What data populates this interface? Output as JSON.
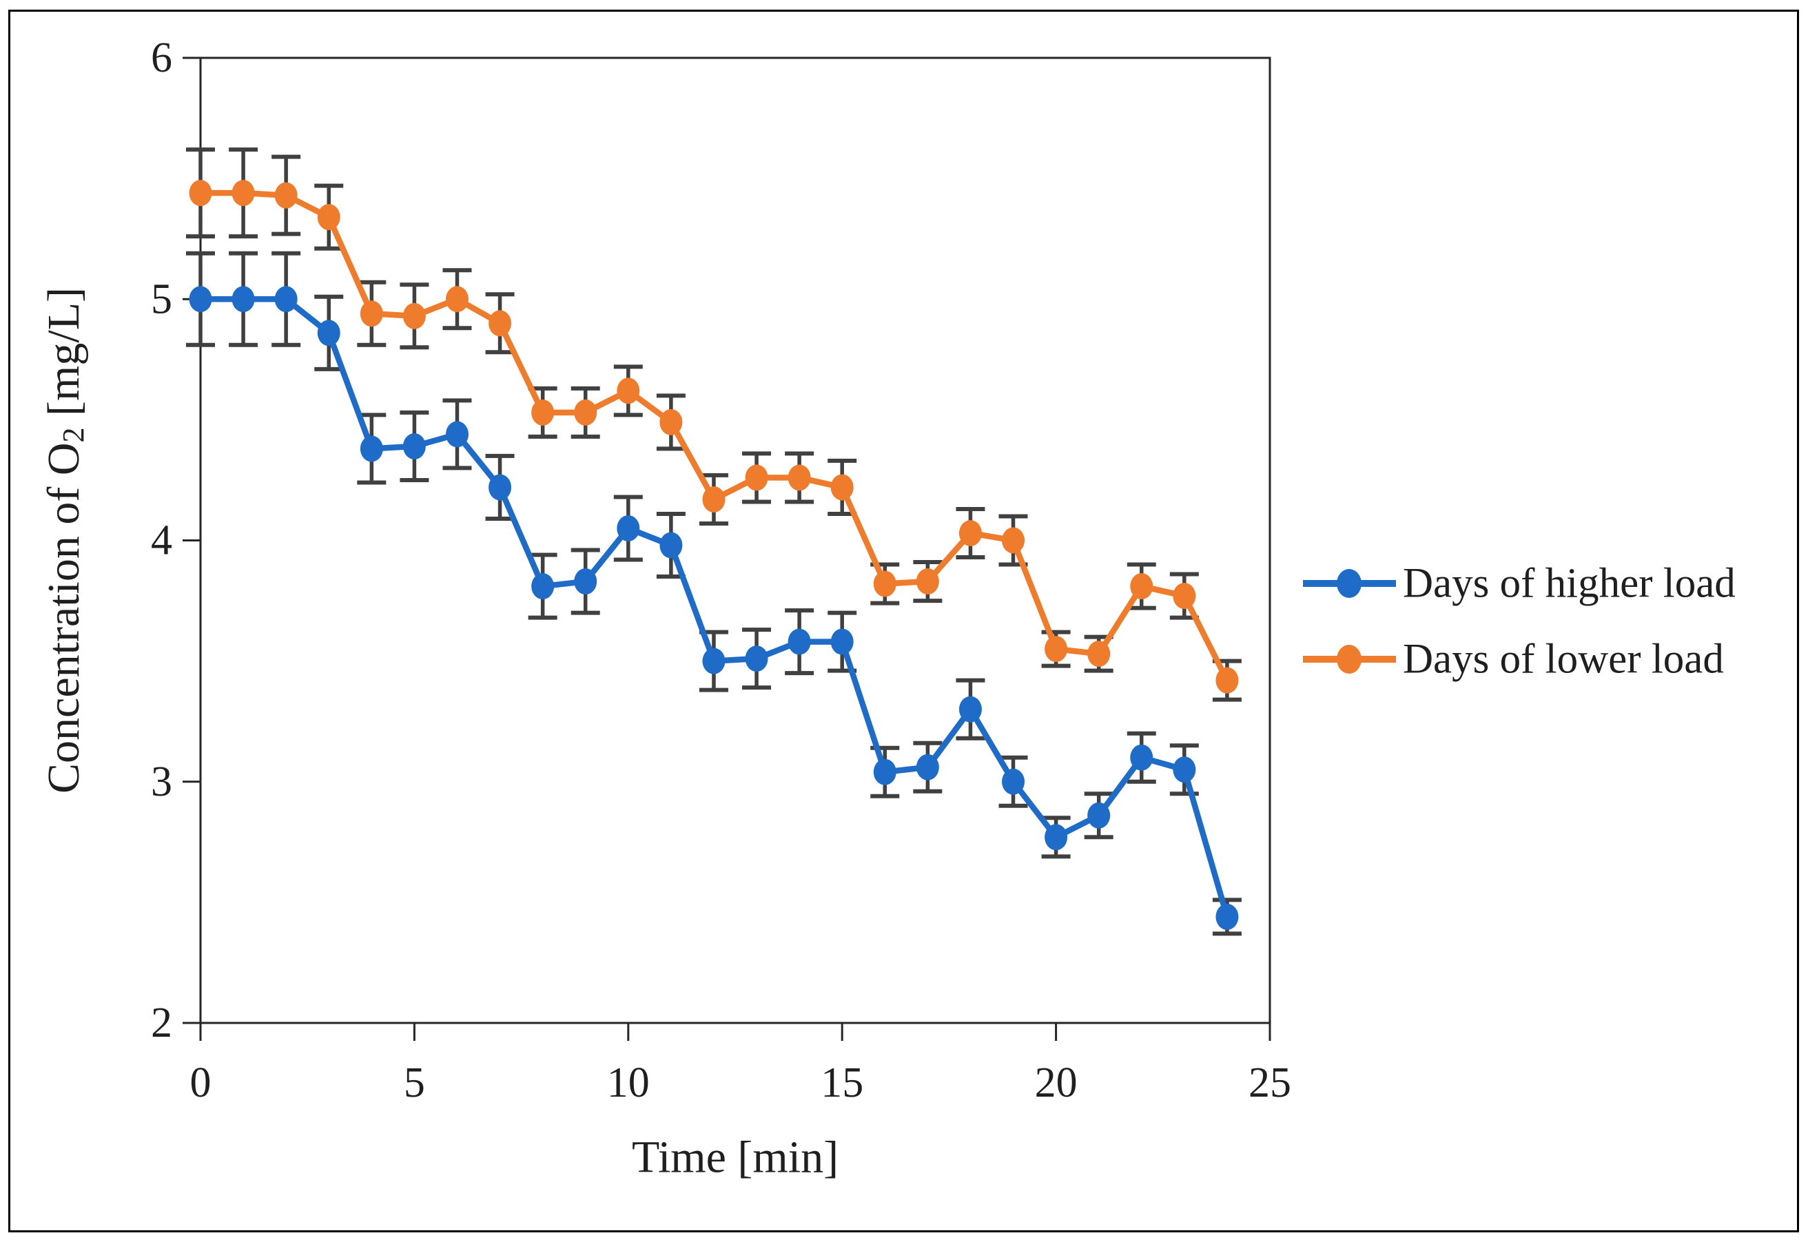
{
  "figure": {
    "background_color": "#ffffff",
    "border_color": "#000000",
    "axis_color": "#262626",
    "text_color": "#1f1f1f"
  },
  "chart_data": {
    "type": "line",
    "title": "",
    "xlabel": "Time [min]",
    "ylabel": "Concentration of O2 [mg/L]",
    "ylabel_parts": {
      "pre": "Concentration of O",
      "sub": "2",
      "post": " [mg/L]"
    },
    "x": [
      0,
      1,
      2,
      3,
      4,
      5,
      6,
      7,
      8,
      9,
      10,
      11,
      12,
      13,
      14,
      15,
      16,
      17,
      18,
      19,
      20,
      21,
      22,
      23,
      24
    ],
    "xlim": [
      0,
      25
    ],
    "ylim": [
      2,
      6
    ],
    "x_ticks": [
      0,
      5,
      10,
      15,
      20,
      25
    ],
    "y_ticks": [
      2,
      3,
      4,
      5,
      6
    ],
    "grid": false,
    "legend_position": "right-outside",
    "error_bar_color": "#404040",
    "series": [
      {
        "name": "Days of higher load",
        "color": "#1E6BC8",
        "values": [
          5.0,
          5.0,
          5.0,
          4.86,
          4.38,
          4.39,
          4.44,
          4.22,
          3.81,
          3.83,
          4.05,
          3.98,
          3.5,
          3.51,
          3.58,
          3.58,
          3.04,
          3.06,
          3.3,
          3.0,
          2.77,
          2.86,
          3.1,
          3.05,
          2.44
        ],
        "errors": [
          0.19,
          0.19,
          0.19,
          0.15,
          0.14,
          0.14,
          0.14,
          0.13,
          0.13,
          0.13,
          0.13,
          0.13,
          0.12,
          0.12,
          0.13,
          0.12,
          0.1,
          0.1,
          0.12,
          0.1,
          0.08,
          0.09,
          0.1,
          0.1,
          0.07
        ]
      },
      {
        "name": "Days of lower load",
        "color": "#EF7B2C",
        "values": [
          5.44,
          5.44,
          5.43,
          5.34,
          4.94,
          4.93,
          5.0,
          4.9,
          4.53,
          4.53,
          4.62,
          4.49,
          4.17,
          4.26,
          4.26,
          4.22,
          3.82,
          3.83,
          4.03,
          4.0,
          3.55,
          3.53,
          3.81,
          3.77,
          3.42
        ],
        "errors": [
          0.18,
          0.18,
          0.16,
          0.13,
          0.13,
          0.13,
          0.12,
          0.12,
          0.1,
          0.1,
          0.1,
          0.11,
          0.1,
          0.1,
          0.1,
          0.11,
          0.08,
          0.08,
          0.1,
          0.1,
          0.07,
          0.07,
          0.09,
          0.09,
          0.08
        ]
      }
    ]
  }
}
